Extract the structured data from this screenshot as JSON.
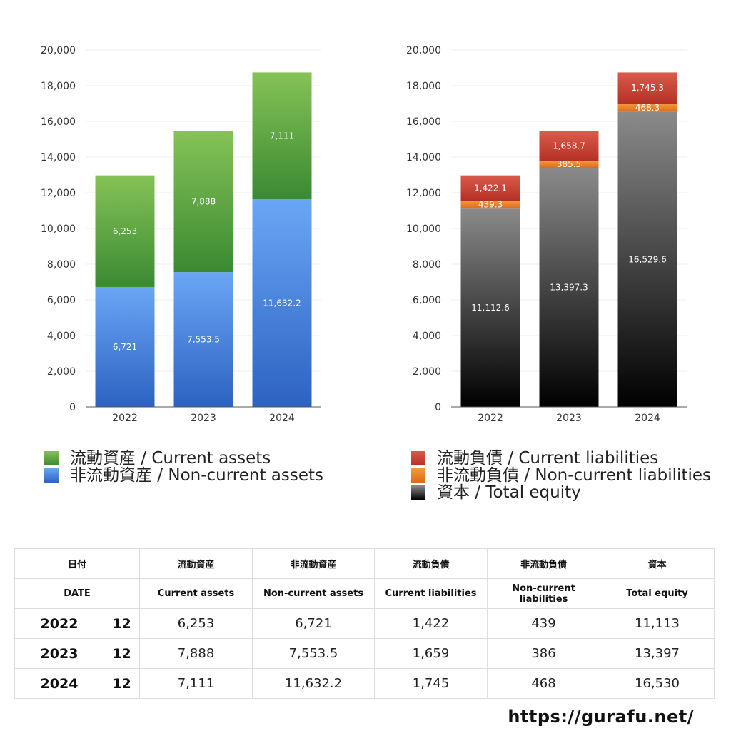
{
  "colors": {
    "current_assets": [
      "#86c257",
      "#3a8a32"
    ],
    "noncurrent_assets": [
      "#6aa6f5",
      "#2d62c2"
    ],
    "current_liabilities": [
      "#d95c4b",
      "#b62f25"
    ],
    "noncurrent_liabilities": [
      "#f29a3e",
      "#dd6a1a"
    ],
    "total_equity": [
      "#8a8a8a",
      "#000000"
    ]
  },
  "chart_data": [
    {
      "type": "bar",
      "stacked": true,
      "categories": [
        "2022",
        "2023",
        "2024"
      ],
      "series": [
        {
          "name": "非流動資産 / Non-current assets",
          "values": [
            6721,
            7553.5,
            11632.2
          ],
          "labels": [
            "6,721",
            "7,553.5",
            "11,632.2"
          ],
          "color_key": "noncurrent_assets"
        },
        {
          "name": "流動資産 / Current assets",
          "values": [
            6253,
            7888,
            7111
          ],
          "labels": [
            "6,253",
            "7,888",
            "7,111"
          ],
          "color_key": "current_assets"
        }
      ],
      "ylim": [
        0,
        20000
      ],
      "yticks": [
        0,
        2000,
        4000,
        6000,
        8000,
        10000,
        12000,
        14000,
        16000,
        18000,
        20000
      ],
      "ytick_labels": [
        "0",
        "2,000",
        "4,000",
        "6,000",
        "8,000",
        "10,000",
        "12,000",
        "14,000",
        "16,000",
        "18,000",
        "20,000"
      ],
      "grid": true
    },
    {
      "type": "bar",
      "stacked": true,
      "categories": [
        "2022",
        "2023",
        "2024"
      ],
      "series": [
        {
          "name": "資本 / Total equity",
          "values": [
            11112.6,
            13397.3,
            16529.6
          ],
          "labels": [
            "11,112.6",
            "13,397.3",
            "16,529.6"
          ],
          "color_key": "total_equity"
        },
        {
          "name": "非流動負債 / Non-current liabilities",
          "values": [
            439.3,
            385.5,
            468.3
          ],
          "labels": [
            "439.3",
            "385.5",
            "468.3"
          ],
          "color_key": "noncurrent_liabilities"
        },
        {
          "name": "流動負債 / Current liabilities",
          "values": [
            1422.1,
            1658.7,
            1745.3
          ],
          "labels": [
            "1,422.1",
            "1,658.7",
            "1,745.3"
          ],
          "color_key": "current_liabilities"
        }
      ],
      "ylim": [
        0,
        20000
      ],
      "yticks": [
        0,
        2000,
        4000,
        6000,
        8000,
        10000,
        12000,
        14000,
        16000,
        18000,
        20000
      ],
      "ytick_labels": [
        "0",
        "2,000",
        "4,000",
        "6,000",
        "8,000",
        "10,000",
        "12,000",
        "14,000",
        "16,000",
        "18,000",
        "20,000"
      ],
      "grid": true
    }
  ],
  "legend_left": [
    {
      "label": "流動資産 / Current assets",
      "color_key": "current_assets"
    },
    {
      "label": "非流動資産 / Non-current assets",
      "color_key": "noncurrent_assets"
    }
  ],
  "legend_right": [
    {
      "label": "流動負債 / Current liabilities",
      "color_key": "current_liabilities"
    },
    {
      "label": "非流動負債 / Non-current liabilities",
      "color_key": "noncurrent_liabilities"
    },
    {
      "label": "資本 / Total equity",
      "color_key": "total_equity"
    }
  ],
  "table": {
    "header_jp": {
      "date": "日付",
      "c1": "流動資産",
      "c2": "非流動資産",
      "c3": "流動負債",
      "c4": "非流動負債",
      "c5": "資本"
    },
    "header_en": {
      "date": "DATE",
      "c1": "Current assets",
      "c2": "Non-current assets",
      "c3": "Current liabilities",
      "c4": "Non-current liabilities",
      "c5": "Total equity"
    },
    "rows": [
      {
        "year": "2022",
        "month": "12",
        "c1": "6,253",
        "c2": "6,721",
        "c3": "1,422",
        "c4": "439",
        "c5": "11,113"
      },
      {
        "year": "2023",
        "month": "12",
        "c1": "7,888",
        "c2": "7,553.5",
        "c3": "1,659",
        "c4": "386",
        "c5": "13,397"
      },
      {
        "year": "2024",
        "month": "12",
        "c1": "7,111",
        "c2": "11,632.2",
        "c3": "1,745",
        "c4": "468",
        "c5": "16,530"
      }
    ]
  },
  "site_url": "https://gurafu.net/"
}
